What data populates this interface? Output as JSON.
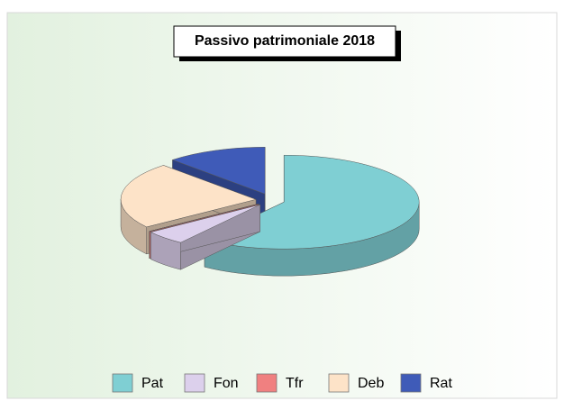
{
  "chart_data": {
    "type": "pie",
    "title": "Passivo patrimoniale 2018",
    "categories": [
      "Pat",
      "Fon",
      "Tfr",
      "Deb",
      "Rat"
    ],
    "values": [
      60,
      5,
      0,
      23,
      12
    ],
    "colors": [
      "#7fcfd3",
      "#dcd0ec",
      "#f08080",
      "#fde3c8",
      "#3f5bb8"
    ]
  }
}
